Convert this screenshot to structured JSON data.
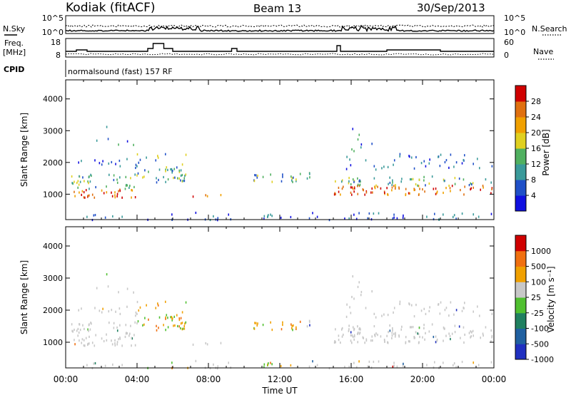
{
  "header": {
    "station": "Kodiak (fitACF)",
    "beam": "Beam 13",
    "date": "30/Sep/2013"
  },
  "noise_panel": {
    "left_label": "N.Sky",
    "right_label": "N.Search",
    "left_ticks": [
      "10^5",
      "10^0"
    ],
    "right_ticks": [
      "10^5",
      "10^0"
    ]
  },
  "freq_panel": {
    "left_label_1": "Freq.",
    "left_label_2": "[MHz]",
    "right_label": "Nave",
    "left_ticks": [
      "18",
      "8"
    ],
    "right_ticks": [
      "60",
      "0"
    ]
  },
  "cpid": {
    "label": "CPID",
    "value": "normalsound (fast) 157 RF"
  },
  "x_axis": {
    "label": "Time UT",
    "ticks": [
      "00:00",
      "04:00",
      "08:00",
      "12:00",
      "16:00",
      "20:00",
      "00:00"
    ]
  },
  "power_colorbar": {
    "label": "Power [dB]",
    "ticks": [
      "4",
      "8",
      "12",
      "16",
      "20",
      "24",
      "28"
    ],
    "colors": [
      "#1010e0",
      "#2050c8",
      "#3a9a9a",
      "#50b060",
      "#e0d020",
      "#f0a000",
      "#e07010",
      "#d00000"
    ]
  },
  "velocity_colorbar": {
    "label": "Velocity [m s⁻¹]",
    "ticks": [
      "1000",
      "500",
      "100",
      "25",
      "-25",
      "-100",
      "-500",
      "-1000"
    ],
    "colors": [
      "#2030c0",
      "#2060a0",
      "#208060",
      "#50c030",
      "#c8c8c8",
      "#f0a000",
      "#f07010",
      "#d00000"
    ]
  },
  "chart_data": [
    {
      "type": "heatmap",
      "title": "Power",
      "ylabel": "Slant Range [km]",
      "xlabel": "Time UT",
      "xlim": [
        0,
        24
      ],
      "ylim": [
        200,
        4600
      ],
      "yticks": [
        1000,
        2000,
        3000,
        4000
      ],
      "zlabel": "Power [dB]",
      "zlim": [
        0,
        32
      ]
    },
    {
      "type": "heatmap",
      "title": "Velocity",
      "ylabel": "Slant Range [km]",
      "xlabel": "Time UT",
      "xlim": [
        0,
        24
      ],
      "ylim": [
        200,
        4600
      ],
      "yticks": [
        1000,
        2000,
        3000,
        4000
      ],
      "zlabel": "Velocity [m s⁻¹]",
      "zlim": [
        -1000,
        1000
      ]
    }
  ]
}
